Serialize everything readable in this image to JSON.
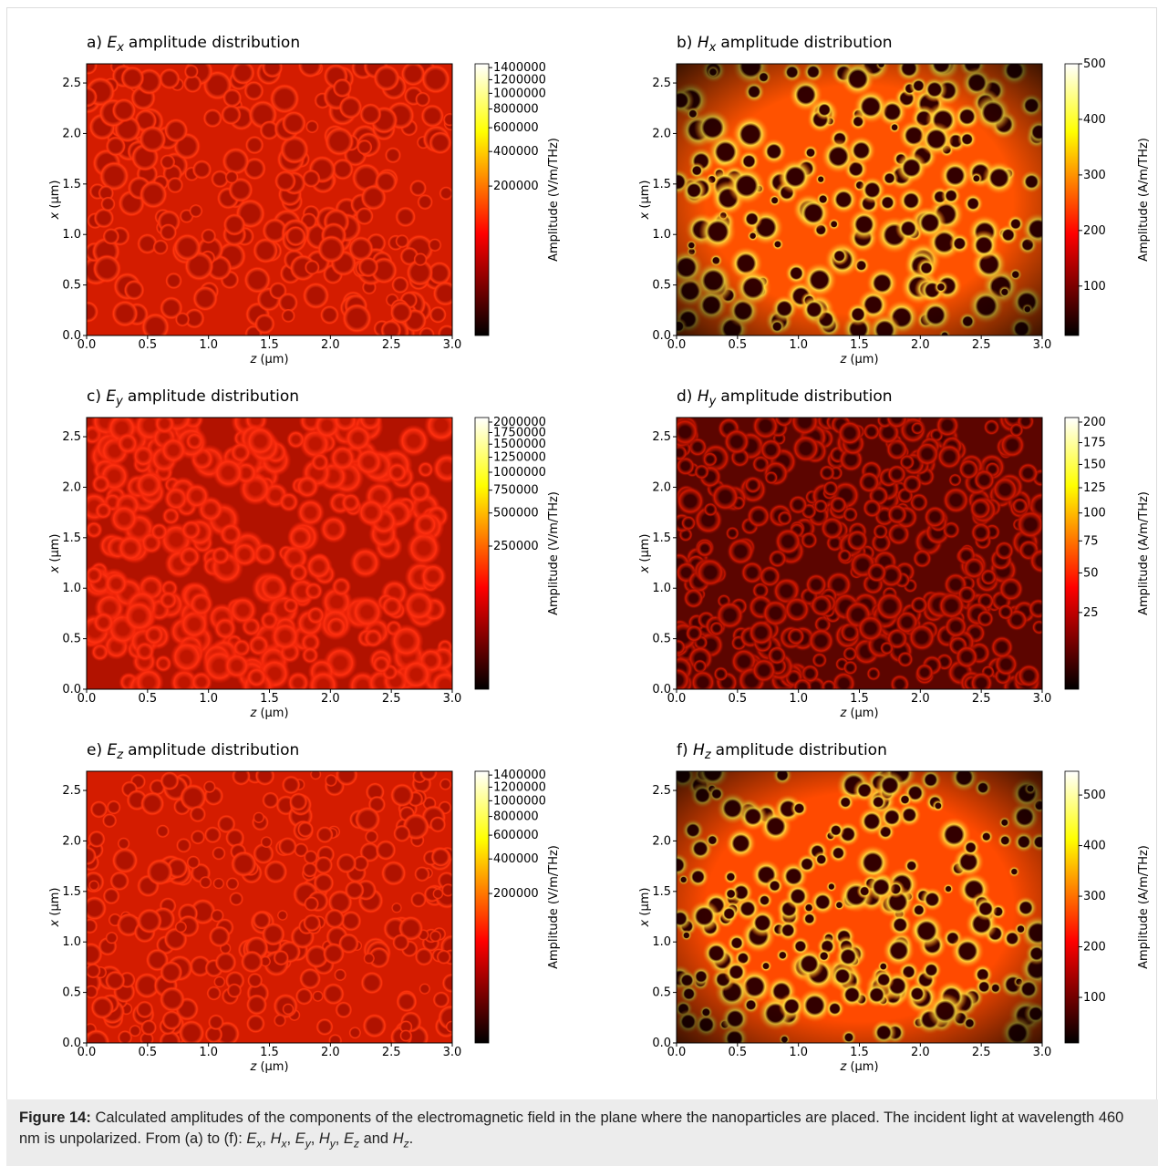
{
  "panels": [
    {
      "title": {
        "label": "a)",
        "sym": "E",
        "sub": "x",
        "text": "amplitude distribution"
      },
      "xlabel": {
        "sym": "z",
        "unit": "(μm)"
      },
      "ylabel": {
        "sym": "x",
        "unit": "(μm)"
      },
      "xlim": [
        0,
        3
      ],
      "ylim": [
        0,
        2.69
      ],
      "xticks": [
        {
          "value": 0,
          "label": "0.0"
        },
        {
          "value": 0.5,
          "label": "0.5"
        },
        {
          "value": 1,
          "label": "1.0"
        },
        {
          "value": 1.5,
          "label": "1.5"
        },
        {
          "value": 2,
          "label": "2.0"
        },
        {
          "value": 2.5,
          "label": "2.5"
        },
        {
          "value": 3,
          "label": "3.0"
        }
      ],
      "yticks": [
        {
          "value": 0,
          "label": "0.0"
        },
        {
          "value": 0.5,
          "label": "0.5"
        },
        {
          "value": 1,
          "label": "1.0"
        },
        {
          "value": 1.5,
          "label": "1.5"
        },
        {
          "value": 2,
          "label": "2.0"
        },
        {
          "value": 2.5,
          "label": "2.5"
        }
      ],
      "colorbar": {
        "label": "Amplitude (V/m/THz)",
        "lim": [
          0,
          1467000
        ],
        "gamma": 0.3,
        "ticks": [
          200000,
          400000,
          600000,
          800000,
          1000000,
          1200000,
          1400000
        ]
      }
    },
    {
      "title": {
        "label": "b)",
        "sym": "H",
        "sub": "x",
        "text": "amplitude distribution"
      },
      "xlabel": {
        "sym": "z",
        "unit": "(μm)"
      },
      "ylabel": {
        "sym": "x",
        "unit": "(μm)"
      },
      "xlim": [
        0,
        3
      ],
      "ylim": [
        0,
        2.69
      ],
      "xticks": [
        {
          "value": 0,
          "label": "0.0"
        },
        {
          "value": 0.5,
          "label": "0.5"
        },
        {
          "value": 1,
          "label": "1.0"
        },
        {
          "value": 1.5,
          "label": "1.5"
        },
        {
          "value": 2,
          "label": "2.0"
        },
        {
          "value": 2.5,
          "label": "2.5"
        },
        {
          "value": 3,
          "label": "3.0"
        }
      ],
      "yticks": [
        {
          "value": 0,
          "label": "0.0"
        },
        {
          "value": 0.5,
          "label": "0.5"
        },
        {
          "value": 1,
          "label": "1.0"
        },
        {
          "value": 1.5,
          "label": "1.5"
        },
        {
          "value": 2,
          "label": "2.0"
        },
        {
          "value": 2.5,
          "label": "2.5"
        }
      ],
      "colorbar": {
        "label": "Amplitude (A/m/THz)",
        "lim": [
          11,
          500
        ],
        "gamma": 1,
        "ticks": [
          100,
          200,
          300,
          400,
          500
        ]
      }
    },
    {
      "title": {
        "label": "c)",
        "sym": "E",
        "sub": "y",
        "text": "amplitude distribution"
      },
      "xlabel": {
        "sym": "z",
        "unit": "(μm)"
      },
      "ylabel": {
        "sym": "x",
        "unit": "(μm)"
      },
      "xlim": [
        0,
        3
      ],
      "ylim": [
        0,
        2.69
      ],
      "xticks": [
        {
          "value": 0,
          "label": "0.0"
        },
        {
          "value": 0.5,
          "label": "0.5"
        },
        {
          "value": 1,
          "label": "1.0"
        },
        {
          "value": 1.5,
          "label": "1.5"
        },
        {
          "value": 2,
          "label": "2.0"
        },
        {
          "value": 2.5,
          "label": "2.5"
        },
        {
          "value": 3,
          "label": "3.0"
        }
      ],
      "yticks": [
        {
          "value": 0,
          "label": "0.0"
        },
        {
          "value": 0.5,
          "label": "0.5"
        },
        {
          "value": 1,
          "label": "1.0"
        },
        {
          "value": 1.5,
          "label": "1.5"
        },
        {
          "value": 2,
          "label": "2.0"
        },
        {
          "value": 2.5,
          "label": "2.5"
        }
      ],
      "colorbar": {
        "label": "Amplitude (V/m/THz)",
        "lim": [
          0,
          2116000
        ],
        "gamma": 0.3,
        "ticks": [
          250000,
          500000,
          750000,
          1000000,
          1250000,
          1500000,
          1750000,
          2000000
        ]
      }
    },
    {
      "title": {
        "label": "d)",
        "sym": "H",
        "sub": "y",
        "text": "amplitude distribution"
      },
      "xlabel": {
        "sym": "z",
        "unit": "(μm)"
      },
      "ylabel": {
        "sym": "x",
        "unit": "(μm)"
      },
      "xlim": [
        0,
        3
      ],
      "ylim": [
        0,
        2.69
      ],
      "xticks": [
        {
          "value": 0,
          "label": "0.0"
        },
        {
          "value": 0.5,
          "label": "0.5"
        },
        {
          "value": 1,
          "label": "1.0"
        },
        {
          "value": 1.5,
          "label": "1.5"
        },
        {
          "value": 2,
          "label": "2.0"
        },
        {
          "value": 2.5,
          "label": "2.5"
        },
        {
          "value": 3,
          "label": "3.0"
        }
      ],
      "yticks": [
        {
          "value": 0,
          "label": "0.0"
        },
        {
          "value": 0.5,
          "label": "0.5"
        },
        {
          "value": 1,
          "label": "1.0"
        },
        {
          "value": 1.5,
          "label": "1.5"
        },
        {
          "value": 2,
          "label": "2.0"
        },
        {
          "value": 2.5,
          "label": "2.5"
        }
      ],
      "colorbar": {
        "label": "Amplitude (A/m/THz)",
        "lim": [
          0,
          205.7
        ],
        "gamma": 0.6,
        "ticks": [
          25,
          50,
          75,
          100,
          125,
          150,
          175,
          200
        ]
      }
    },
    {
      "title": {
        "label": "e)",
        "sym": "E",
        "sub": "z",
        "text": "amplitude distribution"
      },
      "xlabel": {
        "sym": "z",
        "unit": "(μm)"
      },
      "ylabel": {
        "sym": "x",
        "unit": "(μm)"
      },
      "xlim": [
        0,
        3
      ],
      "ylim": [
        0,
        2.69
      ],
      "xticks": [
        {
          "value": 0,
          "label": "0.0"
        },
        {
          "value": 0.5,
          "label": "0.5"
        },
        {
          "value": 1,
          "label": "1.0"
        },
        {
          "value": 1.5,
          "label": "1.5"
        },
        {
          "value": 2,
          "label": "2.0"
        },
        {
          "value": 2.5,
          "label": "2.5"
        },
        {
          "value": 3,
          "label": "3.0"
        }
      ],
      "yticks": [
        {
          "value": 0,
          "label": "0.0"
        },
        {
          "value": 0.5,
          "label": "0.5"
        },
        {
          "value": 1,
          "label": "1.0"
        },
        {
          "value": 1.5,
          "label": "1.5"
        },
        {
          "value": 2,
          "label": "2.0"
        },
        {
          "value": 2.5,
          "label": "2.5"
        }
      ],
      "colorbar": {
        "label": "Amplitude (V/m/THz)",
        "lim": [
          0,
          1467000
        ],
        "gamma": 0.3,
        "ticks": [
          200000,
          400000,
          600000,
          800000,
          1000000,
          1200000,
          1400000
        ]
      }
    },
    {
      "title": {
        "label": "f)",
        "sym": "H",
        "sub": "z",
        "text": "amplitude distribution"
      },
      "xlabel": {
        "sym": "z",
        "unit": "(μm)"
      },
      "ylabel": {
        "sym": "x",
        "unit": "(μm)"
      },
      "xlim": [
        0,
        3
      ],
      "ylim": [
        0,
        2.69
      ],
      "xticks": [
        {
          "value": 0,
          "label": "0.0"
        },
        {
          "value": 0.5,
          "label": "0.5"
        },
        {
          "value": 1,
          "label": "1.0"
        },
        {
          "value": 1.5,
          "label": "1.5"
        },
        {
          "value": 2,
          "label": "2.0"
        },
        {
          "value": 2.5,
          "label": "2.5"
        },
        {
          "value": 3,
          "label": "3.0"
        }
      ],
      "yticks": [
        {
          "value": 0,
          "label": "0.0"
        },
        {
          "value": 0.5,
          "label": "0.5"
        },
        {
          "value": 1,
          "label": "1.0"
        },
        {
          "value": 1.5,
          "label": "1.5"
        },
        {
          "value": 2,
          "label": "2.0"
        },
        {
          "value": 2.5,
          "label": "2.5"
        }
      ],
      "colorbar": {
        "label": "Amplitude (A/m/THz)",
        "lim": [
          10,
          547
        ],
        "gamma": 1,
        "ticks": [
          100,
          200,
          300,
          400,
          500
        ]
      }
    }
  ],
  "caption": {
    "label": "Figure 14:",
    "parts": [
      {
        "text": "Calculated amplitudes of the components of the electromagnetic field in the plane where the nanoparticles are placed. The incident light at wavelength 460 nm is unpolarized. From (a) to (f): "
      },
      {
        "sym": "E",
        "sub": "x"
      },
      {
        "text": ", "
      },
      {
        "sym": "H",
        "sub": "x"
      },
      {
        "text": ", "
      },
      {
        "sym": "E",
        "sub": "y"
      },
      {
        "text": ", "
      },
      {
        "sym": "H",
        "sub": "y"
      },
      {
        "text": ", "
      },
      {
        "sym": "E",
        "sub": "z"
      },
      {
        "text": " and "
      },
      {
        "sym": "H",
        "sub": "z"
      },
      {
        "text": "."
      }
    ]
  }
}
